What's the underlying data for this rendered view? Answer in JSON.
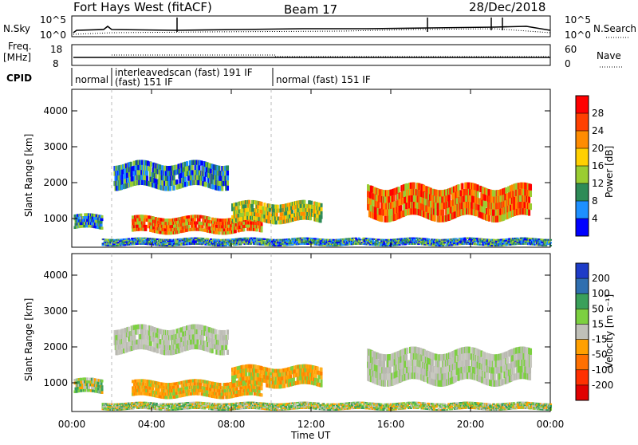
{
  "header": {
    "title": "Fort Hays West (fitACF)",
    "beam": "Beam 17",
    "date": "28/Dec/2018"
  },
  "status_panels": {
    "nsky_label": "N.Sky",
    "nsky_ticks": [
      "10^5",
      "10^0"
    ],
    "nsearch_label": "N.Search",
    "nsearch_ticks": [
      "10^5",
      "10^0"
    ],
    "freq_label": "Freq.",
    "freq_unit": "[MHz]",
    "freq_ticks": [
      "18",
      "8"
    ],
    "nave_label": "Nave",
    "nave_ticks": [
      "60",
      "0"
    ],
    "cpid_label": "CPID",
    "cpid_segments": [
      {
        "text_top": "normal",
        "text_bottom": ""
      },
      {
        "text_top": "interleavedscan (fast) 191 IF",
        "text_bottom": "(fast) 151 IF"
      },
      {
        "text_top": "normal (fast) 151 IF",
        "text_bottom": ""
      }
    ]
  },
  "chart_data": [
    {
      "type": "heatmap",
      "title": "",
      "xlabel": "",
      "ylabel": "Slant Range [km]",
      "colorbar_label": "Power [dB]",
      "colorbar_ticks": [
        "28",
        "24",
        "20",
        "16",
        "12",
        "8",
        "4"
      ],
      "colorbar_colors": [
        "#ff0000",
        "#ff4000",
        "#ff8c00",
        "#ffd000",
        "#9acd32",
        "#2e8b57",
        "#1e90ff",
        "#0000ff"
      ],
      "ylim": [
        200,
        4600
      ],
      "yticks": [
        "4000",
        "3000",
        "2000",
        "1000"
      ],
      "xlim_hours": [
        0,
        24
      ],
      "regions": [
        {
          "t": [
            2.1,
            7.8
          ],
          "r": [
            1850,
            2550
          ],
          "level": "low"
        },
        {
          "t": [
            3.0,
            9.5
          ],
          "r": [
            600,
            1050
          ],
          "level": "high"
        },
        {
          "t": [
            8.0,
            12.5
          ],
          "r": [
            900,
            1450
          ],
          "level": "mid"
        },
        {
          "t": [
            14.8,
            23.0
          ],
          "r": [
            1000,
            1900
          ],
          "level": "high"
        },
        {
          "t": [
            0.1,
            1.5
          ],
          "r": [
            700,
            1100
          ],
          "level": "low"
        },
        {
          "t": [
            1.5,
            24.0
          ],
          "r": [
            250,
            450
          ],
          "level": "low"
        }
      ]
    },
    {
      "type": "heatmap",
      "title": "",
      "xlabel": "Time UT",
      "ylabel": "Slant Range [km]",
      "colorbar_label": "Velocity [m s⁻¹]",
      "colorbar_ticks": [
        "200",
        "100",
        "50",
        "15",
        "-15",
        "-50",
        "-100",
        "-200"
      ],
      "colorbar_colors": [
        "#1e3cc8",
        "#2f6fb0",
        "#3aa05a",
        "#7cd040",
        "#c0c0b8",
        "#ffa000",
        "#ff7000",
        "#ff3000",
        "#e00000"
      ],
      "ylim": [
        200,
        4600
      ],
      "yticks": [
        "4000",
        "3000",
        "2000",
        "1000"
      ],
      "xticks": [
        "00:00",
        "04:00",
        "08:00",
        "12:00",
        "16:00",
        "20:00",
        "00:00"
      ],
      "xlim_hours": [
        0,
        24
      ],
      "regions": [
        {
          "t": [
            2.1,
            7.8
          ],
          "r": [
            1850,
            2550
          ],
          "level": "grey"
        },
        {
          "t": [
            3.0,
            9.5
          ],
          "r": [
            600,
            1050
          ],
          "level": "orange"
        },
        {
          "t": [
            8.0,
            12.5
          ],
          "r": [
            900,
            1450
          ],
          "level": "orange"
        },
        {
          "t": [
            14.8,
            23.0
          ],
          "r": [
            1000,
            1900
          ],
          "level": "grey"
        },
        {
          "t": [
            0.1,
            1.5
          ],
          "r": [
            700,
            1100
          ],
          "level": "green"
        },
        {
          "t": [
            1.5,
            24.0
          ],
          "r": [
            250,
            450
          ],
          "level": "green"
        }
      ]
    }
  ]
}
